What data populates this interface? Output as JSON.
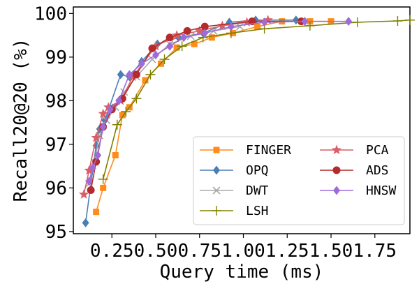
{
  "chart_data": {
    "type": "line",
    "title": "",
    "xlabel": "Query time (ms)",
    "ylabel": "Recall20@20 (%)",
    "xlim": [
      0.03,
      1.95
    ],
    "ylim": [
      94.95,
      100.15
    ],
    "xticks": [
      {
        "v": 0.25,
        "label": "0.25"
      },
      {
        "v": 0.5,
        "label": "0.50"
      },
      {
        "v": 0.75,
        "label": "0.75"
      },
      {
        "v": 1.0,
        "label": "1.00"
      },
      {
        "v": 1.25,
        "label": "1.25"
      },
      {
        "v": 1.5,
        "label": "1.50"
      },
      {
        "v": 1.75,
        "label": "1.75"
      }
    ],
    "yticks": [
      {
        "v": 95,
        "label": "95"
      },
      {
        "v": 96,
        "label": "96"
      },
      {
        "v": 97,
        "label": "97"
      },
      {
        "v": 98,
        "label": "98"
      },
      {
        "v": 99,
        "label": "99"
      },
      {
        "v": 100,
        "label": "100"
      }
    ],
    "legend_position": "lower-right",
    "series": [
      {
        "name": "FINGER",
        "color": "#ff8c1a",
        "marker": "square",
        "x": [
          0.16,
          0.2,
          0.27,
          0.31,
          0.35,
          0.44,
          0.53,
          0.62,
          0.72,
          0.82,
          0.94,
          1.08,
          1.22,
          1.38,
          1.5
        ],
        "y": [
          95.45,
          96.0,
          96.75,
          97.67,
          97.85,
          98.47,
          98.85,
          99.22,
          99.3,
          99.45,
          99.55,
          99.7,
          99.82,
          99.82,
          99.82
        ]
      },
      {
        "name": "OPQ",
        "color": "#4a7fb5",
        "marker": "diamond",
        "x": [
          0.1,
          0.16,
          0.18,
          0.21,
          0.3,
          0.35,
          0.42,
          0.51,
          0.63,
          0.77,
          0.92,
          1.07,
          1.3
        ],
        "y": [
          95.2,
          96.97,
          97.35,
          97.55,
          98.6,
          98.55,
          98.9,
          99.3,
          99.45,
          99.55,
          99.8,
          99.85,
          99.85
        ]
      },
      {
        "name": "DWT",
        "color": "#aaaaaa",
        "marker": "x",
        "x": [
          0.12,
          0.15,
          0.18,
          0.22,
          0.27,
          0.32,
          0.39,
          0.48,
          0.58,
          0.7,
          0.83,
          0.98
        ],
        "y": [
          96.1,
          96.6,
          97.2,
          97.55,
          97.85,
          98.2,
          98.55,
          98.95,
          99.3,
          99.48,
          99.6,
          99.7
        ]
      },
      {
        "name": "LSH",
        "color": "#808000",
        "marker": "plus",
        "x": [
          0.2,
          0.28,
          0.33,
          0.39,
          0.47,
          0.55,
          0.65,
          0.77,
          0.93,
          1.12,
          1.38,
          1.65,
          1.88,
          1.95
        ],
        "y": [
          96.2,
          97.45,
          97.75,
          98.05,
          98.6,
          98.95,
          99.25,
          99.45,
          99.55,
          99.65,
          99.72,
          99.8,
          99.83,
          99.85
        ]
      },
      {
        "name": "PCA",
        "color": "#d95f66",
        "marker": "star",
        "x": [
          0.09,
          0.12,
          0.16,
          0.2,
          0.23,
          0.3,
          0.37,
          0.5,
          0.62,
          0.75,
          0.88,
          1.02,
          1.14
        ],
        "y": [
          95.85,
          96.4,
          97.15,
          97.7,
          97.85,
          98.0,
          98.55,
          99.25,
          99.5,
          99.6,
          99.72,
          99.8,
          99.85
        ]
      },
      {
        "name": "ADS",
        "color": "#b52a2a",
        "marker": "circle",
        "x": [
          0.13,
          0.16,
          0.2,
          0.25,
          0.31,
          0.39,
          0.48,
          0.58,
          0.68,
          0.78,
          1.05,
          1.33
        ],
        "y": [
          95.95,
          96.6,
          97.4,
          97.8,
          98.05,
          98.6,
          99.2,
          99.45,
          99.6,
          99.7,
          99.82,
          99.82
        ]
      },
      {
        "name": "HNSW",
        "color": "#9d6cd9",
        "marker": "diamond",
        "x": [
          0.12,
          0.14,
          0.17,
          0.2,
          0.24,
          0.29,
          0.35,
          0.42,
          0.5,
          0.58,
          0.66,
          0.78,
          0.93,
          1.12,
          1.35,
          1.6
        ],
        "y": [
          96.15,
          96.45,
          96.75,
          97.4,
          97.8,
          98.0,
          98.6,
          98.85,
          99.05,
          99.25,
          99.45,
          99.55,
          99.7,
          99.8,
          99.82,
          99.82
        ]
      }
    ]
  }
}
